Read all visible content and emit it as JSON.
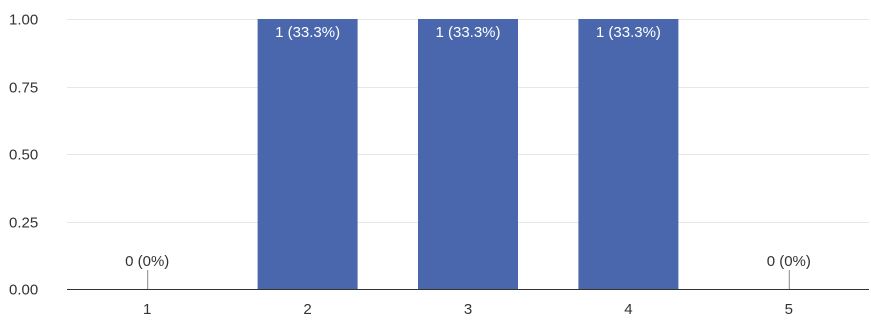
{
  "chart_data": {
    "type": "bar",
    "categories": [
      "1",
      "2",
      "3",
      "4",
      "5"
    ],
    "values": [
      0,
      1,
      1,
      1,
      0
    ],
    "data_labels": [
      "0 (0%)",
      "1 (33.3%)",
      "1 (33.3%)",
      "1 (33.3%)",
      "0 (0%)"
    ],
    "yticks": [
      0,
      0.25,
      0.5,
      0.75,
      1
    ],
    "ytick_labels": [
      "0.00",
      "0.25",
      "0.50",
      "0.75",
      "1.00"
    ],
    "ylim": [
      0,
      1
    ],
    "grid": true,
    "legend": "none"
  },
  "colors": {
    "bar": "#4a67ae",
    "grid": "#e6e6e6",
    "axis": "#333333",
    "label_inside": "#ffffff",
    "label_outside": "#333333"
  }
}
